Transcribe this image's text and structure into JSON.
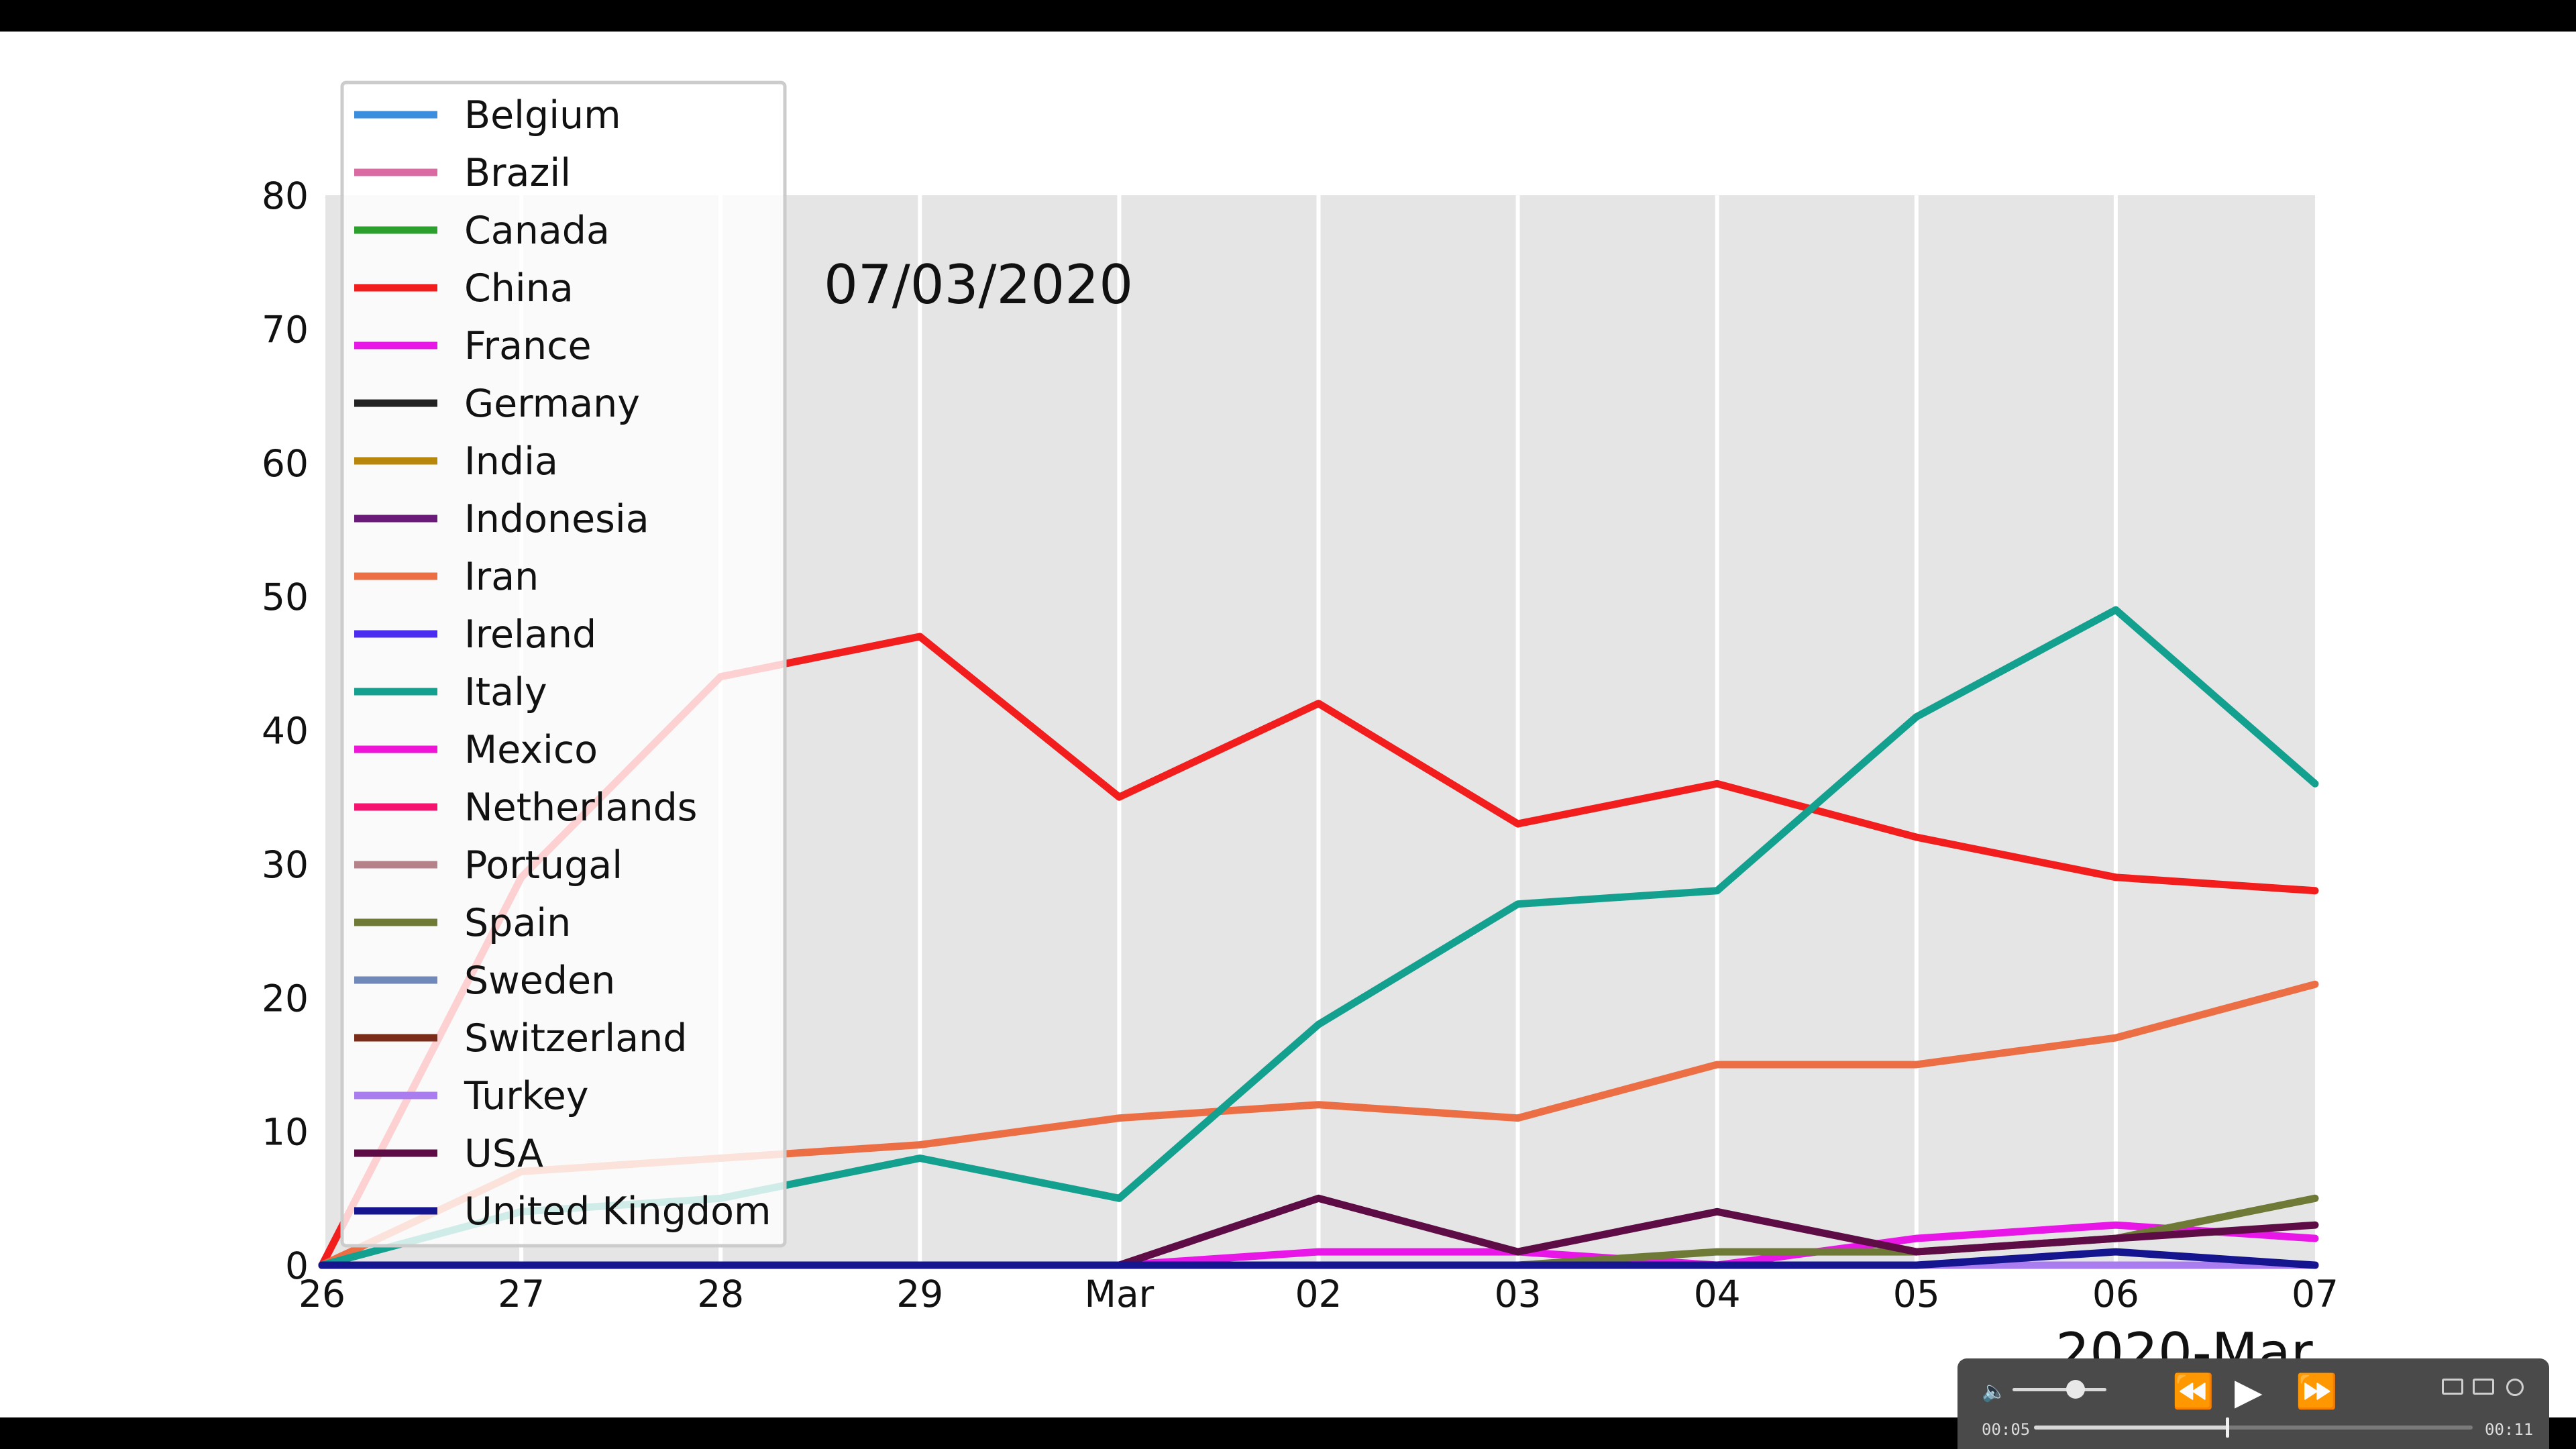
{
  "chart_data": {
    "type": "line",
    "annotation": "07/03/2020",
    "xlabel": "2020-Mar",
    "x_tick_labels": [
      "26",
      "27",
      "28",
      "29",
      "Mar",
      "02",
      "03",
      "04",
      "05",
      "06",
      "07"
    ],
    "y_ticks": [
      0,
      10,
      20,
      30,
      40,
      50,
      60,
      70,
      80
    ],
    "ylim": [
      0,
      80
    ],
    "grid": "vertical",
    "legend_position": "upper-left",
    "series": [
      {
        "name": "Belgium",
        "color": "#3b8ede",
        "values": [
          0,
          0,
          0,
          0,
          0,
          0,
          0,
          0,
          0,
          0,
          0
        ]
      },
      {
        "name": "Brazil",
        "color": "#d96aa2",
        "values": [
          0,
          0,
          0,
          0,
          0,
          0,
          0,
          0,
          0,
          0,
          0
        ]
      },
      {
        "name": "Canada",
        "color": "#2ca02c",
        "values": [
          0,
          0,
          0,
          0,
          0,
          0,
          0,
          0,
          0,
          0,
          0
        ]
      },
      {
        "name": "China",
        "color": "#f21d1d",
        "values": [
          0,
          29,
          44,
          47,
          35,
          42,
          33,
          36,
          32,
          29,
          28
        ]
      },
      {
        "name": "France",
        "color": "#e817e8",
        "values": [
          0,
          0,
          0,
          0,
          0,
          1,
          1,
          0,
          2,
          3,
          2
        ]
      },
      {
        "name": "Germany",
        "color": "#222222",
        "values": [
          0,
          0,
          0,
          0,
          0,
          0,
          0,
          0,
          0,
          0,
          0
        ]
      },
      {
        "name": "India",
        "color": "#b8860b",
        "values": [
          0,
          0,
          0,
          0,
          0,
          0,
          0,
          0,
          0,
          0,
          0
        ]
      },
      {
        "name": "Indonesia",
        "color": "#6a1b7a",
        "values": [
          0,
          0,
          0,
          0,
          0,
          0,
          0,
          0,
          0,
          0,
          0
        ]
      },
      {
        "name": "Iran",
        "color": "#ec6e45",
        "values": [
          0,
          7,
          8,
          9,
          11,
          12,
          11,
          15,
          15,
          17,
          21
        ]
      },
      {
        "name": "Ireland",
        "color": "#4b2bf0",
        "values": [
          0,
          0,
          0,
          0,
          0,
          0,
          0,
          0,
          0,
          0,
          0
        ]
      },
      {
        "name": "Italy",
        "color": "#14a08f",
        "values": [
          0,
          4,
          5,
          8,
          5,
          18,
          27,
          28,
          41,
          49,
          36
        ]
      },
      {
        "name": "Mexico",
        "color": "#f014d8",
        "values": [
          0,
          0,
          0,
          0,
          0,
          0,
          0,
          0,
          0,
          0,
          0
        ]
      },
      {
        "name": "Netherlands",
        "color": "#f5136f",
        "values": [
          0,
          0,
          0,
          0,
          0,
          0,
          0,
          0,
          0,
          0,
          0
        ]
      },
      {
        "name": "Portugal",
        "color": "#b5828a",
        "values": [
          0,
          0,
          0,
          0,
          0,
          0,
          0,
          0,
          0,
          0,
          0
        ]
      },
      {
        "name": "Spain",
        "color": "#6e7a35",
        "values": [
          0,
          0,
          0,
          0,
          0,
          0,
          0,
          1,
          1,
          2,
          5
        ]
      },
      {
        "name": "Sweden",
        "color": "#7189b8",
        "values": [
          0,
          0,
          0,
          0,
          0,
          0,
          0,
          0,
          0,
          0,
          0
        ]
      },
      {
        "name": "Switzerland",
        "color": "#7a2b1a",
        "values": [
          0,
          0,
          0,
          0,
          0,
          0,
          0,
          0,
          0,
          0,
          0
        ]
      },
      {
        "name": "Turkey",
        "color": "#a97cf0",
        "values": [
          0,
          0,
          0,
          0,
          0,
          0,
          0,
          0,
          0,
          0,
          0
        ]
      },
      {
        "name": "USA",
        "color": "#5e0c45",
        "values": [
          0,
          0,
          0,
          0,
          0,
          5,
          1,
          4,
          1,
          2,
          3
        ]
      },
      {
        "name": "United Kingdom",
        "color": "#15158f",
        "values": [
          0,
          0,
          0,
          0,
          0,
          0,
          0,
          0,
          0,
          1,
          0
        ]
      }
    ]
  },
  "player": {
    "time_current": "00:05",
    "time_total": "00:11",
    "progress_fraction": 0.45,
    "volume_fraction": 0.6,
    "icons": {
      "volume": "volume-icon",
      "rewind": "rewind-icon",
      "play": "play-icon",
      "fast_forward": "fast-forward-icon",
      "pip": "picture-in-picture-icon",
      "airplay": "airplay-icon",
      "options": "options-icon"
    }
  }
}
